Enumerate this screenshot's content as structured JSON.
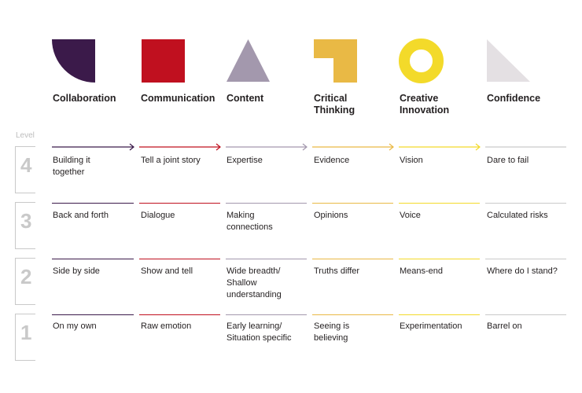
{
  "colors": {
    "collaboration": "#3b1a4a",
    "communication": "#c0101f",
    "content": "#a398ad",
    "critical_thinking": "#e9b945",
    "creative_innovation": "#f3da2a",
    "confidence": "#e4e0e3",
    "level_gray": "#c9c9c9"
  },
  "level_axis_label": "Level",
  "columns": [
    {
      "key": "collaboration",
      "title": "Collaboration",
      "icon": "quarter-circle-icon"
    },
    {
      "key": "communication",
      "title": "Communication",
      "icon": "square-icon"
    },
    {
      "key": "content",
      "title": "Content",
      "icon": "triangle-icon"
    },
    {
      "key": "critical_thinking",
      "title": "Critical\nThinking",
      "icon": "corner-l-icon"
    },
    {
      "key": "creative_innovation",
      "title": "Creative\nInnovation",
      "icon": "ring-icon"
    },
    {
      "key": "confidence",
      "title": "Confidence",
      "icon": "right-triangle-icon"
    }
  ],
  "levels": [
    {
      "number": "4",
      "cells": [
        "Building it\ntogether",
        "Tell a joint story",
        "Expertise",
        "Evidence",
        "Vision",
        "Dare to fail"
      ]
    },
    {
      "number": "3",
      "cells": [
        "Back and forth",
        "Dialogue",
        "Making\nconnections",
        "Opinions",
        "Voice",
        "Calculated risks"
      ]
    },
    {
      "number": "2",
      "cells": [
        "Side by side",
        "Show and tell",
        "Wide breadth/\nShallow\nunderstanding",
        "Truths differ",
        "Means-end",
        "Where do I stand?"
      ]
    },
    {
      "number": "1",
      "cells": [
        "On my own",
        "Raw emotion",
        "Early learning/\nSituation specific",
        "Seeing is\nbelieving",
        "Experimentation",
        "Barrel on"
      ]
    }
  ]
}
